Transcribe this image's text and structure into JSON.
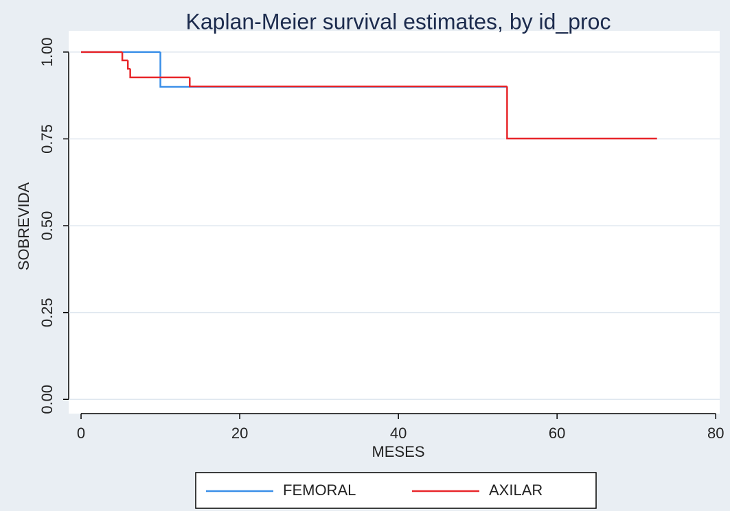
{
  "chart_data": {
    "type": "step",
    "title": "Kaplan-Meier survival estimates, by id_proc",
    "x_label": "MESES",
    "y_label": "SOBREVIDA",
    "series": [
      {
        "name": "FEMORAL",
        "color": "#3a8fe8",
        "x": [
          0,
          10,
          53.7
        ],
        "values": [
          1,
          0.9,
          0.9
        ]
      },
      {
        "name": "AXILAR",
        "color": "#e8262a",
        "x": [
          0,
          5.2,
          5.9,
          6.2,
          13.7,
          53.7,
          72.6
        ],
        "values": [
          1,
          0.976,
          0.952,
          0.927,
          0.901,
          0.751,
          0.751
        ]
      }
    ],
    "xlim": [
      -1.56,
      80.5
    ],
    "ylim": [
      -0.041,
      1.061
    ],
    "xticks": [
      0,
      20,
      40,
      60,
      80
    ],
    "yticks": [
      {
        "value": 0,
        "label": "0.00"
      },
      {
        "value": 0.25,
        "label": "0.25"
      },
      {
        "value": 0.5,
        "label": "0.50"
      },
      {
        "value": 0.75,
        "label": "0.75"
      },
      {
        "value": 1,
        "label": "1.00"
      }
    ],
    "grid": true,
    "legend": "bottom"
  }
}
